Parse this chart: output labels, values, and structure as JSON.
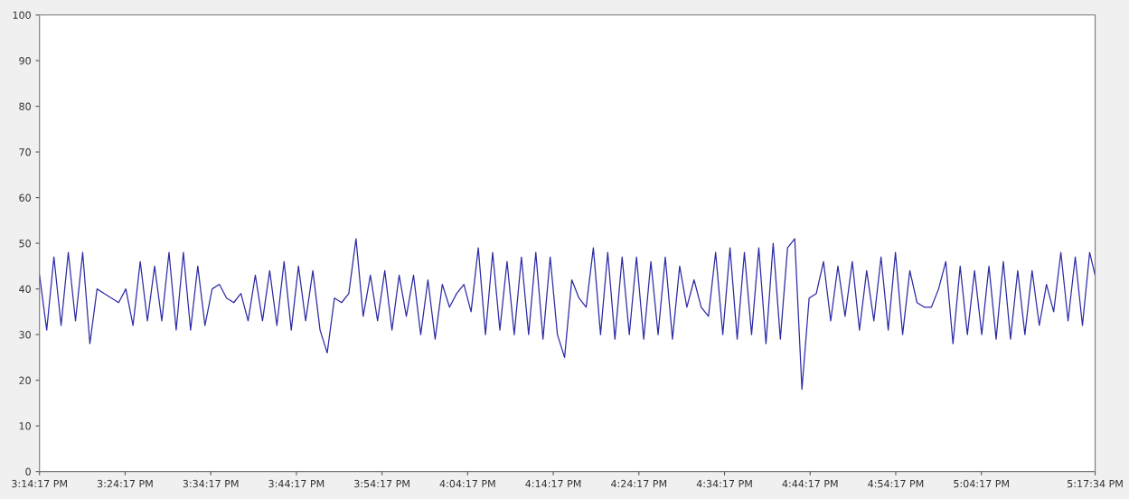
{
  "chart_data": {
    "type": "line",
    "x": [
      15.2381,
      15.2521,
      15.2661,
      15.2801,
      15.2941,
      15.3081,
      15.3221,
      15.3361,
      15.3501,
      15.3641,
      15.3781,
      15.3921,
      15.4061,
      15.4201,
      15.4341,
      15.4481,
      15.4621,
      15.4761,
      15.4901,
      15.5041,
      15.5181,
      15.5321,
      15.5461,
      15.5601,
      15.5741,
      15.5881,
      15.6021,
      15.6161,
      15.6301,
      15.6441,
      15.6581,
      15.6721,
      15.6861,
      15.7001,
      15.7141,
      15.7281,
      15.7421,
      15.7561,
      15.7701,
      15.7841,
      15.7981,
      15.8121,
      15.8261,
      15.8401,
      15.8541,
      15.8681,
      15.8821,
      15.8961,
      15.9101,
      15.9241,
      15.9381,
      15.9521,
      15.9661,
      15.9801,
      15.9941,
      16.0081,
      16.0221,
      16.0361,
      16.0501,
      16.0641,
      16.0781,
      16.0921,
      16.1061,
      16.1201,
      16.1341,
      16.1481,
      16.1621,
      16.1761,
      16.1901,
      16.2041,
      16.2181,
      16.2321,
      16.2461,
      16.2601,
      16.2741,
      16.2881,
      16.3021,
      16.3161,
      16.3301,
      16.3441,
      16.3581,
      16.3721,
      16.3861,
      16.4001,
      16.4141,
      16.4281,
      16.4421,
      16.4561,
      16.4701,
      16.4841,
      16.4981,
      16.5121,
      16.5261,
      16.5401,
      16.5541,
      16.5681,
      16.5821,
      16.5961,
      16.6101,
      16.6241,
      16.6381,
      16.6521,
      16.6661,
      16.6801,
      16.6941,
      16.7081,
      16.7221,
      16.7361,
      16.7501,
      16.7641,
      16.7781,
      16.7921,
      16.8061,
      16.8201,
      16.8341,
      16.8481,
      16.8621,
      16.8761,
      16.8901,
      16.9041,
      16.9181,
      16.9321,
      16.9461,
      16.9601,
      16.9741,
      16.9881,
      17.0021,
      17.0161,
      17.0301,
      17.0441,
      17.0581,
      17.0721,
      17.0861,
      17.1001,
      17.1141,
      17.1281,
      17.1421,
      17.1561,
      17.1701,
      17.1841,
      17.1981,
      17.2121,
      17.2261,
      17.2401,
      17.2541,
      17.2681,
      17.2821,
      17.2927
    ],
    "series": [
      {
        "color": "#2b2ba6",
        "values": [
          43,
          31,
          47,
          32,
          48,
          33,
          48,
          28,
          40,
          39,
          38,
          37,
          40,
          32,
          46,
          33,
          45,
          33,
          48,
          31,
          48,
          31,
          45,
          32,
          40,
          41,
          38,
          37,
          39,
          33,
          43,
          33,
          44,
          32,
          46,
          31,
          45,
          33,
          44,
          31,
          26,
          38,
          37,
          39,
          51,
          34,
          43,
          33,
          44,
          31,
          43,
          34,
          43,
          30,
          42,
          29,
          41,
          36,
          39,
          41,
          35,
          49,
          30,
          48,
          31,
          46,
          30,
          47,
          30,
          48,
          29,
          47,
          30,
          25,
          42,
          38,
          36,
          49,
          30,
          48,
          29,
          47,
          30,
          47,
          29,
          46,
          30,
          47,
          29,
          45,
          36,
          42,
          36,
          34,
          48,
          30,
          49,
          29,
          48,
          30,
          49,
          28,
          50,
          29,
          49,
          51,
          18,
          38,
          39,
          46,
          33,
          45,
          34,
          46,
          31,
          44,
          33,
          47,
          31,
          48,
          30,
          44,
          37,
          36,
          36,
          40,
          46,
          28,
          45,
          30,
          44,
          30,
          45,
          29,
          46,
          29,
          44,
          30,
          44,
          32,
          41,
          35,
          48,
          33,
          47,
          32,
          48,
          43
        ]
      }
    ],
    "xlim": [
      15.23806,
      17.29278
    ],
    "xticks": [
      {
        "value": 15.23806,
        "label": "3:14:17 PM"
      },
      {
        "value": 15.40472,
        "label": "3:24:17 PM"
      },
      {
        "value": 15.57139,
        "label": "3:34:17 PM"
      },
      {
        "value": 15.73806,
        "label": "3:44:17 PM"
      },
      {
        "value": 15.90472,
        "label": "3:54:17 PM"
      },
      {
        "value": 16.07139,
        "label": "4:04:17 PM"
      },
      {
        "value": 16.23806,
        "label": "4:14:17 PM"
      },
      {
        "value": 16.40472,
        "label": "4:24:17 PM"
      },
      {
        "value": 16.57139,
        "label": "4:34:17 PM"
      },
      {
        "value": 16.73806,
        "label": "4:44:17 PM"
      },
      {
        "value": 16.90472,
        "label": "4:54:17 PM"
      },
      {
        "value": 17.07139,
        "label": "5:04:17 PM"
      },
      {
        "value": 17.29278,
        "label": "5:17:34 PM"
      }
    ],
    "ylim": [
      0,
      100
    ],
    "yticks": [
      0,
      10,
      20,
      30,
      40,
      50,
      60,
      70,
      80,
      90,
      100
    ],
    "grid": false,
    "marker": "none",
    "line_style": "solid"
  }
}
